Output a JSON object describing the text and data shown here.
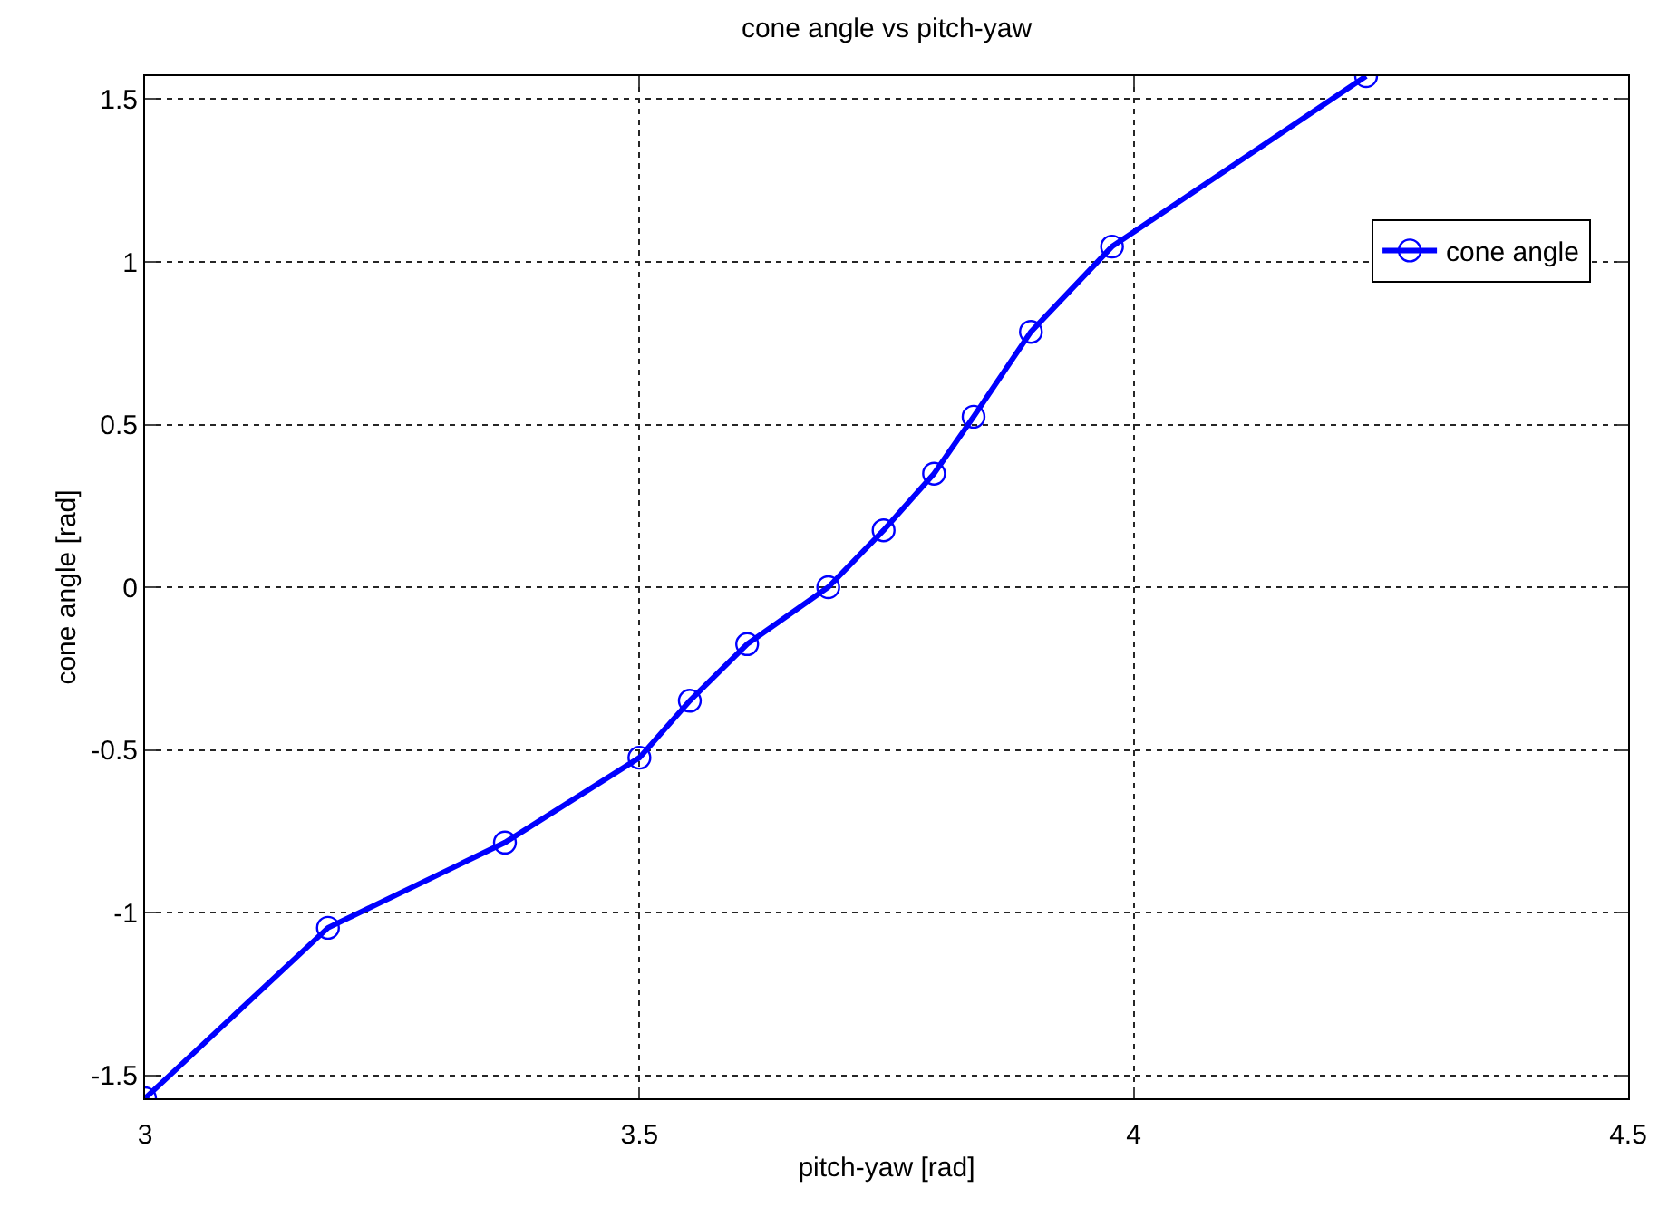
{
  "chart_data": {
    "type": "line",
    "title": "cone angle vs pitch-yaw",
    "xlabel": "pitch-yaw [rad]",
    "ylabel": "cone angle [rad]",
    "x": [
      3.0,
      3.185,
      3.364,
      3.5,
      3.551,
      3.609,
      3.691,
      3.747,
      3.798,
      3.838,
      3.896,
      3.978,
      4.235
    ],
    "series": [
      {
        "name": "cone angle",
        "color": "#0000ff",
        "values": [
          -1.571,
          -1.047,
          -0.785,
          -0.524,
          -0.349,
          -0.175,
          0,
          0.175,
          0.349,
          0.524,
          0.785,
          1.047,
          1.571
        ]
      }
    ],
    "xlim": [
      3,
      4.5
    ],
    "xticks": [
      3,
      3.5,
      4,
      4.5
    ],
    "ylim": [
      -1.571,
      1.571
    ],
    "yticks": [
      -1.5,
      -1,
      -0.5,
      0,
      0.5,
      1,
      1.5
    ],
    "grid": true,
    "legend": "top right",
    "marker": "circle",
    "line_style": "solid"
  }
}
